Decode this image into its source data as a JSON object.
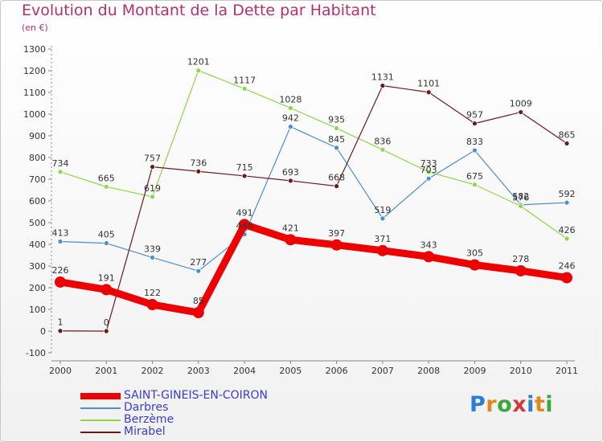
{
  "title": "Evolution du Montant de la Dette par Habitant",
  "unit": "(en €)",
  "brand": {
    "letters": [
      {
        "ch": "P",
        "color": "#2a7fd4"
      },
      {
        "ch": "r",
        "color": "#e0881f"
      },
      {
        "ch": "o",
        "color": "#3aa83a"
      },
      {
        "ch": "x",
        "color": "#d43a3a"
      },
      {
        "ch": "i",
        "color": "#2a7fd4"
      },
      {
        "ch": "t",
        "color": "#e0881f"
      },
      {
        "ch": "i",
        "color": "#3aa83a"
      }
    ]
  },
  "chart_data": {
    "type": "line",
    "title": "Evolution du Montant de la Dette par Habitant",
    "subtitle": "(en €)",
    "xlabel": "",
    "ylabel": "",
    "x": [
      "2000",
      "2001",
      "2002",
      "2003",
      "2004",
      "2005",
      "2006",
      "2007",
      "2008",
      "2009",
      "2010",
      "2011"
    ],
    "ylim": [
      -100,
      1300
    ],
    "yticks": [
      "-100",
      "0",
      "100",
      "200",
      "300",
      "400",
      "500",
      "600",
      "700",
      "800",
      "900",
      "1000",
      "1100",
      "1200",
      "1300"
    ],
    "grid": false,
    "legend_position": "bottom-left",
    "series": [
      {
        "name": "SAINT-GINEIS-EN-COIRON",
        "color": "#ee0000",
        "width": 9,
        "marker": 7,
        "values": [
          226,
          191,
          122,
          85,
          491,
          421,
          397,
          371,
          343,
          305,
          278,
          246
        ]
      },
      {
        "name": "Darbres",
        "color": "#4b8fcc",
        "width": 1.2,
        "marker": 3,
        "values": [
          413,
          405,
          339,
          277,
          446,
          942,
          845,
          519,
          703,
          833,
          582,
          592
        ]
      },
      {
        "name": "Berzème",
        "color": "#8fd64a",
        "width": 1.2,
        "marker": 3,
        "values": [
          734,
          665,
          619,
          1201,
          1117,
          1028,
          935,
          836,
          733,
          675,
          576,
          426
        ]
      },
      {
        "name": "Mirabel",
        "color": "#6b1a1a",
        "width": 1.2,
        "marker": 3,
        "values": [
          1,
          0,
          757,
          736,
          715,
          693,
          668,
          1131,
          1101,
          957,
          1009,
          865
        ]
      }
    ]
  }
}
